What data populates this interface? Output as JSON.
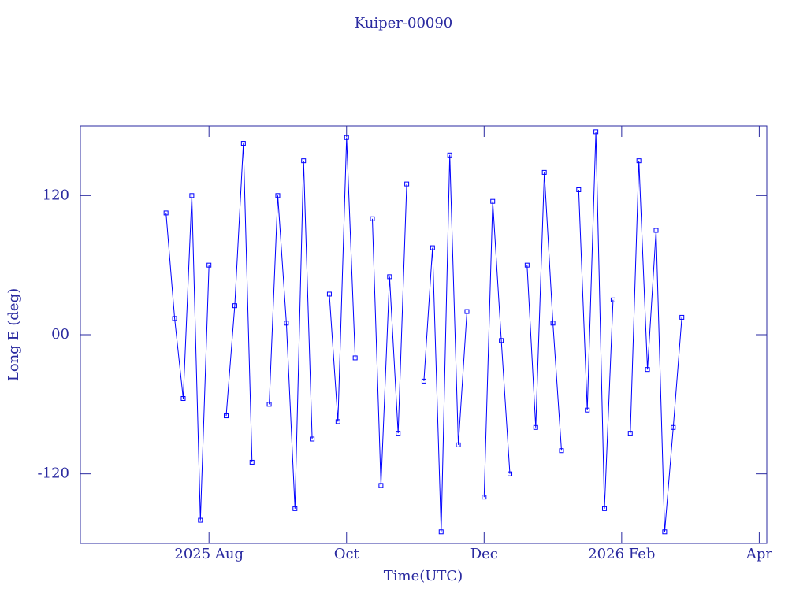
{
  "chart_data": {
    "type": "line",
    "title": "Kuiper-00090",
    "x_label": "Time(UTC)",
    "y_label": "Long E (deg)",
    "x": [
      7.375,
      7.5,
      7.625,
      7.75,
      7.875,
      8,
      8.125,
      8.25,
      8.375,
      8.5,
      8.625,
      8.75,
      8.875,
      9,
      9.125,
      9.25,
      9.375,
      9.5,
      9.625,
      9.75,
      9.875,
      10,
      10.125,
      10.25,
      10.375,
      10.5,
      10.625,
      10.75,
      10.875,
      11,
      11.125,
      11.25,
      11.375,
      11.5,
      11.625,
      11.75,
      11.875,
      12,
      12.125,
      12.25,
      12.375,
      12.5,
      12.625,
      12.75,
      12.875,
      13,
      13.125,
      13.25,
      13.375,
      13.5,
      13.625,
      13.75,
      13.875,
      14,
      14.125,
      14.25,
      14.375,
      14.5,
      14.625,
      14.75,
      14.875
    ],
    "series": [
      {
        "color": "#0000ff",
        "values": [
          105,
          14,
          -55,
          120,
          -160,
          60,
          null,
          -70,
          25,
          165,
          -110,
          null,
          -60,
          120,
          10,
          -150,
          150,
          -90,
          null,
          35,
          -75,
          170,
          -20,
          null,
          100,
          -130,
          50,
          -85,
          130,
          null,
          -40,
          75,
          -170,
          155,
          -95,
          20,
          null,
          -140,
          115,
          -5,
          -120,
          null,
          60,
          -80,
          140,
          10,
          -100,
          null,
          125,
          -65,
          175,
          -150,
          30,
          null,
          -85,
          150,
          -30,
          90,
          -170,
          -80,
          15
        ]
      }
    ],
    "xlim": [
      6.13,
      16.11
    ],
    "xticks": [
      {
        "value": 8,
        "label": "2025 Aug"
      },
      {
        "value": 10,
        "label": "Oct"
      },
      {
        "value": 12,
        "label": "Dec"
      },
      {
        "value": 14,
        "label": "2026 Feb"
      },
      {
        "value": 16,
        "label": "Apr"
      }
    ],
    "ylim": [
      -180,
      180
    ],
    "yticks": [
      -120,
      {
        "value": 0,
        "label": "00"
      },
      120
    ],
    "axis_color": "#2a2aa0"
  }
}
